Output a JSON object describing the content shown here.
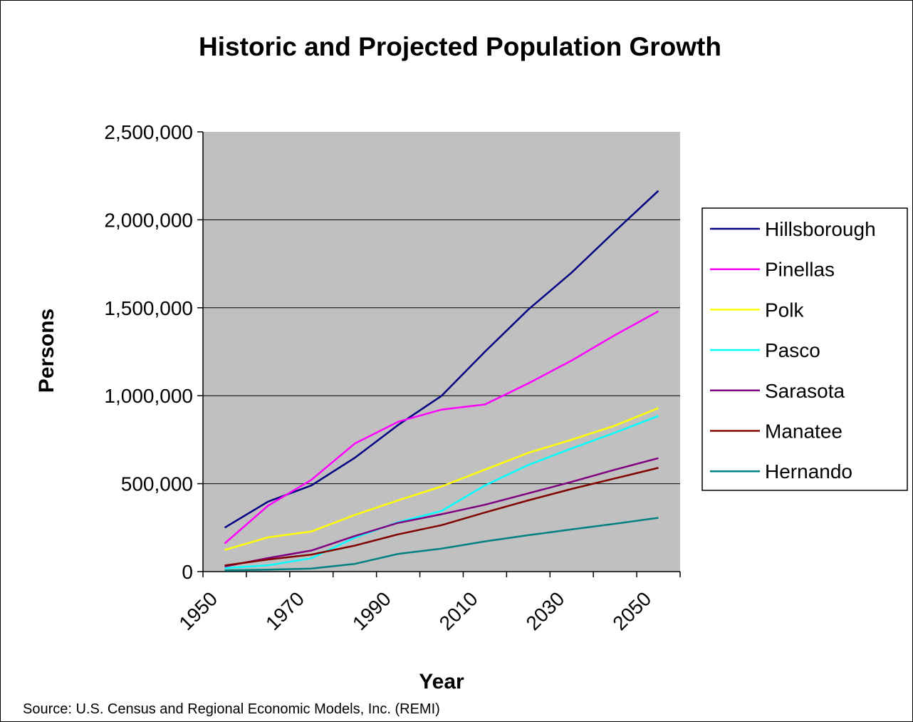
{
  "chart_data": {
    "type": "line",
    "title": "Historic and Projected Population Growth",
    "xlabel": "Year",
    "ylabel": "Persons",
    "source": "Source: U.S. Census and Regional Economic Models, Inc. (REMI)",
    "x": [
      1950,
      1960,
      1970,
      1980,
      1990,
      2000,
      2010,
      2020,
      2030,
      2040,
      2050
    ],
    "x_tick_labels": [
      "1950",
      "1970",
      "1990",
      "2010",
      "2030",
      "2050"
    ],
    "y_tick_labels": [
      "0",
      "500,000",
      "1,000,000",
      "1,500,000",
      "2,000,000",
      "2,500,000"
    ],
    "ylim": [
      0,
      2500000
    ],
    "grid": true,
    "plot_background": "#c0c0c0",
    "legend_position": "right",
    "series": [
      {
        "name": "Hillsborough",
        "color": "#000080",
        "values": [
          250000,
          398000,
          490000,
          647000,
          834000,
          999000,
          1250000,
          1490000,
          1700000,
          1935000,
          2165000
        ]
      },
      {
        "name": "Pinellas",
        "color": "#ff00ff",
        "values": [
          160000,
          375000,
          522000,
          728000,
          852000,
          921000,
          950000,
          1070000,
          1200000,
          1345000,
          1480000
        ]
      },
      {
        "name": "Polk",
        "color": "#ffff00",
        "values": [
          123000,
          195000,
          228000,
          322000,
          405000,
          484000,
          580000,
          675000,
          750000,
          830000,
          930000
        ]
      },
      {
        "name": "Pasco",
        "color": "#00ffff",
        "values": [
          20000,
          36000,
          76000,
          193000,
          281000,
          345000,
          490000,
          606000,
          700000,
          790000,
          885000
        ]
      },
      {
        "name": "Sarasota",
        "color": "#800080",
        "values": [
          29000,
          77000,
          120000,
          202000,
          277000,
          326000,
          380000,
          445000,
          510000,
          580000,
          645000
        ]
      },
      {
        "name": "Manatee",
        "color": "#800000",
        "values": [
          35000,
          69000,
          97000,
          148000,
          212000,
          264000,
          336000,
          405000,
          470000,
          530000,
          590000
        ]
      },
      {
        "name": "Hernando",
        "color": "#008080",
        "values": [
          7000,
          11000,
          17000,
          44000,
          101000,
          131000,
          172000,
          207000,
          240000,
          272000,
          306000
        ]
      }
    ]
  }
}
